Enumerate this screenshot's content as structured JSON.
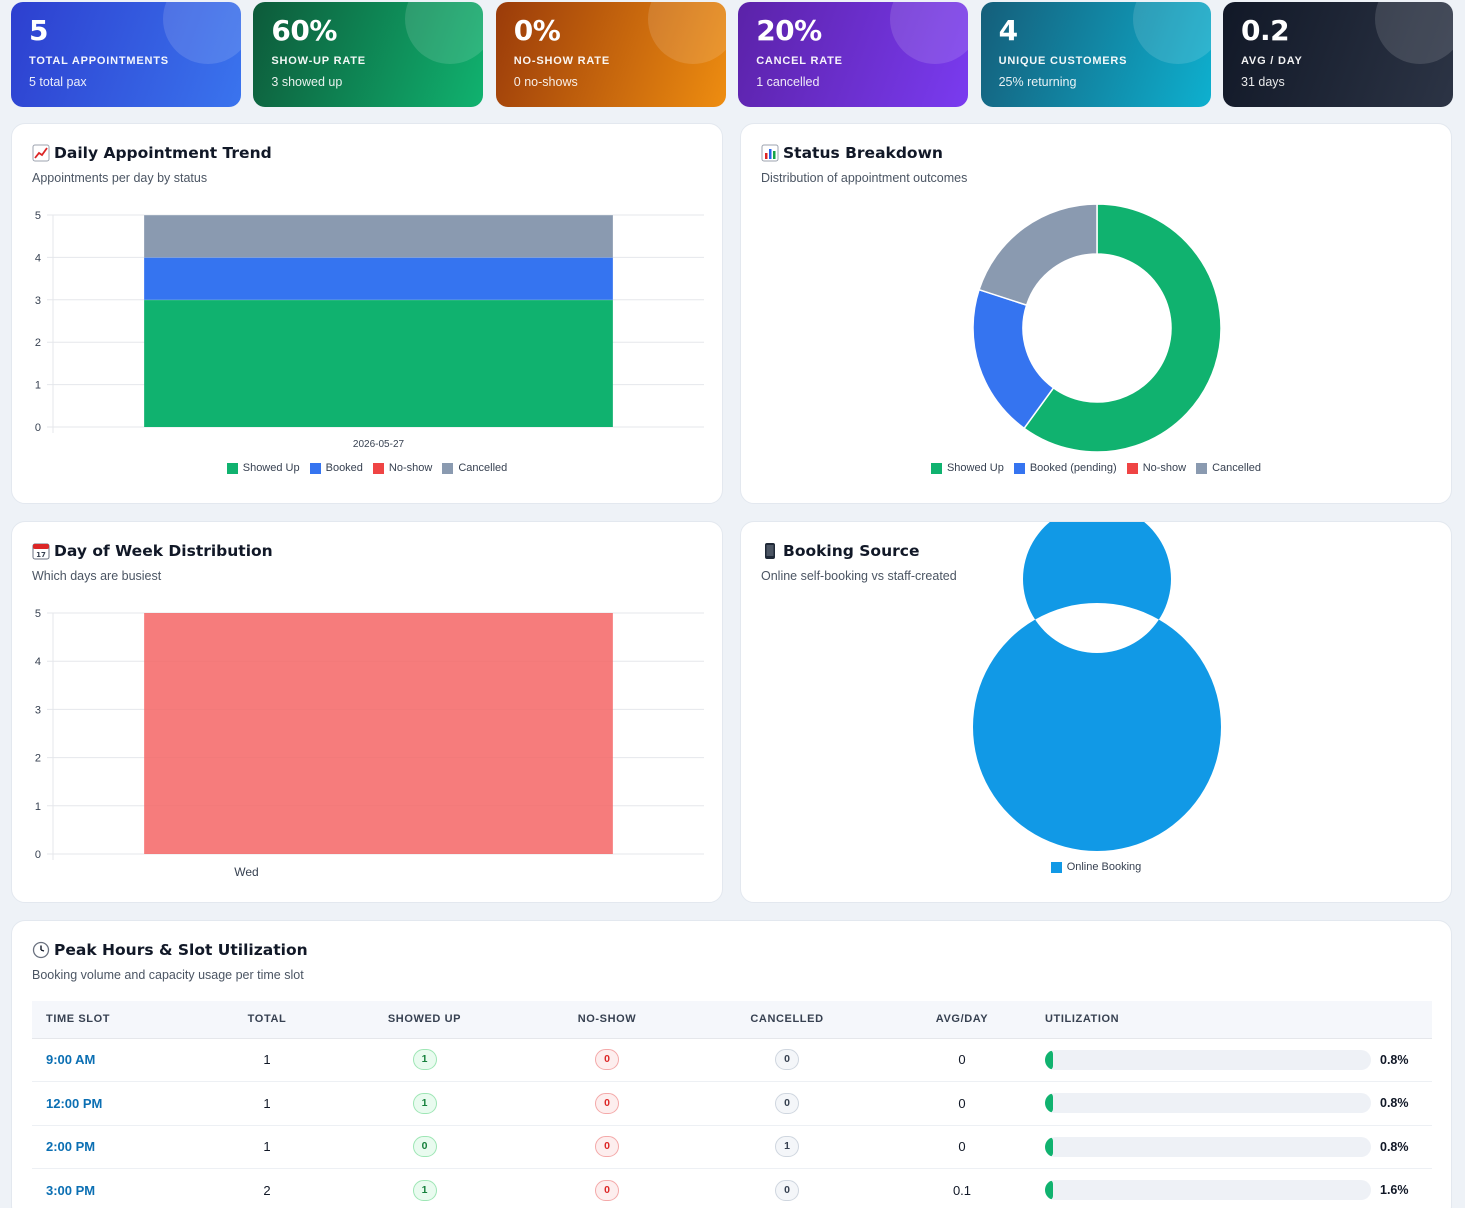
{
  "kpis": [
    {
      "value": "5",
      "label": "TOTAL APPOINTMENTS",
      "sub": "5 total pax",
      "gradient": [
        "#2d3fcf",
        "#3a74ee"
      ]
    },
    {
      "value": "60%",
      "label": "SHOW-UP RATE",
      "sub": "3 showed up",
      "gradient": [
        "#0d5a3a",
        "#10b26f"
      ]
    },
    {
      "value": "0%",
      "label": "NO-SHOW RATE",
      "sub": "0 no-shows",
      "gradient": [
        "#9a3b0a",
        "#ee8d10"
      ]
    },
    {
      "value": "20%",
      "label": "CANCEL RATE",
      "sub": "1 cancelled",
      "gradient": [
        "#5b22a8",
        "#7a3bf0"
      ]
    },
    {
      "value": "4",
      "label": "UNIQUE CUSTOMERS",
      "sub": "25% returning",
      "gradient": [
        "#155e7a",
        "#0eb0cf"
      ]
    },
    {
      "value": "0.2",
      "label": "AVG / DAY",
      "sub": "31 days",
      "gradient": [
        "#111827",
        "#2c3445"
      ]
    }
  ],
  "trend": {
    "title": "Daily Appointment Trend",
    "subtitle": "Appointments per day by status",
    "icon": "chart-increasing-icon"
  },
  "status": {
    "title": "Status Breakdown",
    "subtitle": "Distribution of appointment outcomes",
    "icon": "bar-chart-icon"
  },
  "dow": {
    "title": "Day of Week Distribution",
    "subtitle": "Which days are busiest",
    "icon": "calendar-icon"
  },
  "source": {
    "title": "Booking Source",
    "subtitle": "Online self-booking vs staff-created",
    "icon": "mobile-phone-icon"
  },
  "peak": {
    "title": "Peak Hours & Slot Utilization",
    "subtitle": "Booking volume and capacity usage per time slot",
    "icon": "clock-icon",
    "columns": [
      "TIME SLOT",
      "TOTAL",
      "SHOWED UP",
      "NO-SHOW",
      "CANCELLED",
      "AVG/DAY",
      "UTILIZATION"
    ],
    "rows": [
      {
        "slot": "9:00 AM",
        "total": "1",
        "showed": "1",
        "noshow": "0",
        "cancelled": "0",
        "avg": "0",
        "util": "0.8%",
        "util_value": 0.8
      },
      {
        "slot": "12:00 PM",
        "total": "1",
        "showed": "1",
        "noshow": "0",
        "cancelled": "0",
        "avg": "0",
        "util": "0.8%",
        "util_value": 0.8
      },
      {
        "slot": "2:00 PM",
        "total": "1",
        "showed": "0",
        "noshow": "0",
        "cancelled": "1",
        "avg": "0",
        "util": "0.8%",
        "util_value": 0.8
      },
      {
        "slot": "3:00 PM",
        "total": "2",
        "showed": "1",
        "noshow": "0",
        "cancelled": "0",
        "avg": "0.1",
        "util": "1.6%",
        "util_value": 1.6
      }
    ]
  },
  "colors": {
    "showed": "#10b26f",
    "booked": "#3574f0",
    "noshow": "#ef4444",
    "cancelled": "#8a9ab0",
    "dow_bar": "#f56565",
    "online": "#1199e6"
  },
  "chart_data": [
    {
      "type": "bar",
      "stacked": true,
      "categories": [
        "2026-05-27"
      ],
      "series": [
        {
          "name": "Showed Up",
          "values": [
            3
          ]
        },
        {
          "name": "Booked",
          "values": [
            1
          ]
        },
        {
          "name": "No-show",
          "values": [
            0
          ]
        },
        {
          "name": "Cancelled",
          "values": [
            1
          ]
        }
      ],
      "ylim": [
        0,
        5
      ],
      "yticks": [
        "0",
        "1",
        "2",
        "3",
        "4",
        "5"
      ],
      "legend": "bottom",
      "grid": true
    },
    {
      "type": "pie",
      "donut": true,
      "labels": [
        "Showed Up",
        "Booked (pending)",
        "No-show",
        "Cancelled"
      ],
      "values": [
        3,
        1,
        0,
        1
      ],
      "legend": "bottom"
    },
    {
      "type": "bar",
      "categories": [
        "Wed"
      ],
      "values": [
        5
      ],
      "ylim": [
        0,
        5
      ],
      "yticks": [
        "0",
        "1",
        "2",
        "3",
        "4",
        "5"
      ],
      "grid": true
    },
    {
      "type": "pie",
      "donut": true,
      "labels": [
        "Online Booking"
      ],
      "values": [
        1
      ],
      "legend": "bottom"
    }
  ]
}
